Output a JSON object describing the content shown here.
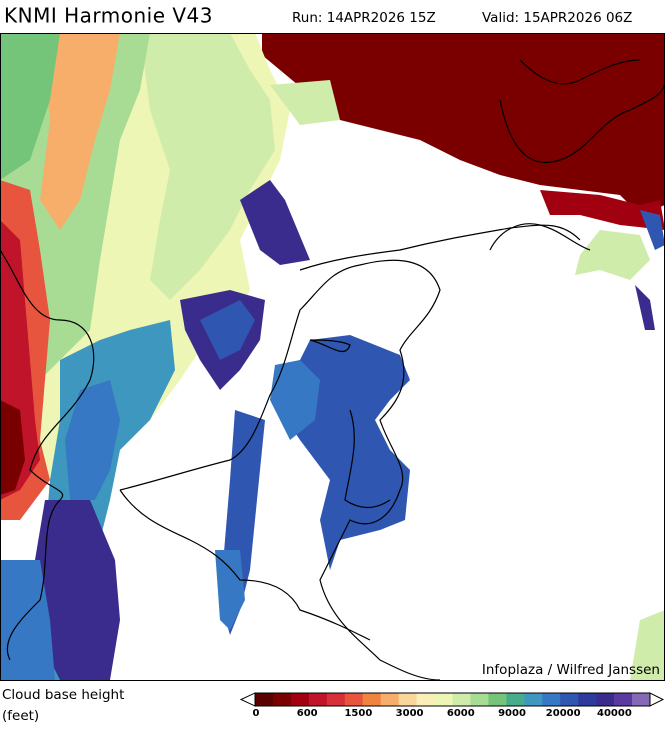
{
  "header": {
    "title": "KNMI Harmonie V43",
    "run": "Run: 14APR2026 15Z",
    "valid": "Valid: 15APR2026 06Z"
  },
  "credit": "Infoplaza / Wilfred Janssen",
  "legend": {
    "label_lines": [
      "Cloud base height",
      "(feet)"
    ],
    "ticks": [
      "0",
      "600",
      "1500",
      "3000",
      "6000",
      "9000",
      "20000",
      "40000"
    ],
    "colors": [
      "#5a0000",
      "#7a0000",
      "#a00010",
      "#c0142a",
      "#d6303a",
      "#e8553f",
      "#f0843f",
      "#f6ae6a",
      "#fad59c",
      "#fbefb9",
      "#eef6b6",
      "#d0ecaa",
      "#a8dc94",
      "#74c47a",
      "#48ab8a",
      "#3d97bf",
      "#3778c4",
      "#2f56b0",
      "#2c3b9c",
      "#3a2c8c",
      "#5a3a9e",
      "#8469b6"
    ]
  }
}
